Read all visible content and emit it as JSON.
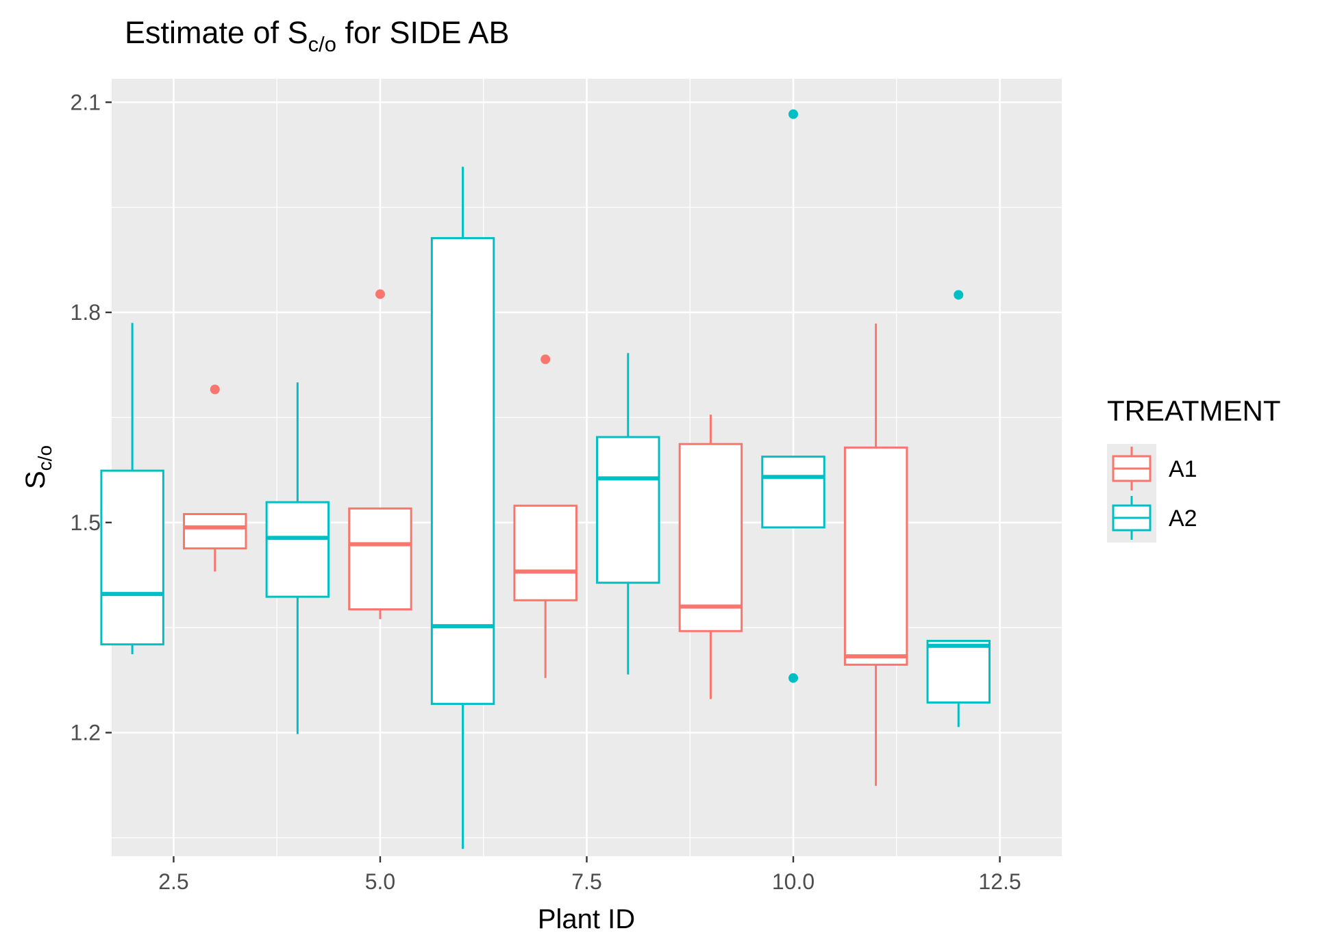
{
  "chart_data": {
    "type": "boxplot",
    "title": {
      "pre": "Estimate of S",
      "sub": "c/o",
      "post": " for SIDE AB"
    },
    "xlabel": "Plant ID",
    "ylabel": {
      "main": "S",
      "sub": "c/o"
    },
    "xlim": [
      1.75,
      13.25
    ],
    "ylim": [
      1.0235,
      2.1335
    ],
    "x_ticks": [
      2.5,
      5.0,
      7.5,
      10.0,
      12.5
    ],
    "x_tick_labels": [
      "2.5",
      "5.0",
      "7.5",
      "10.0",
      "12.5"
    ],
    "y_ticks": [
      1.2,
      1.5,
      1.8,
      2.1
    ],
    "y_tick_labels": [
      "1.2",
      "1.5",
      "1.8",
      "2.1"
    ],
    "grid": true,
    "legend": {
      "title": "TREATMENT",
      "position": "right",
      "entries": [
        {
          "label": "A1",
          "color": "#F8766D"
        },
        {
          "label": "A2",
          "color": "#00BFC4"
        }
      ]
    },
    "box_width": 0.75,
    "series": [
      {
        "name": "A2",
        "color": "#00BFC4",
        "boxes": [
          {
            "x": 2,
            "lower_whisker": 1.312,
            "q1": 1.326,
            "median": 1.398,
            "q3": 1.574,
            "upper_whisker": 1.785,
            "outliers": []
          },
          {
            "x": 4,
            "lower_whisker": 1.198,
            "q1": 1.394,
            "median": 1.478,
            "q3": 1.529,
            "upper_whisker": 1.7,
            "outliers": []
          },
          {
            "x": 6,
            "lower_whisker": 1.034,
            "q1": 1.241,
            "median": 1.352,
            "q3": 1.906,
            "upper_whisker": 2.008,
            "outliers": []
          },
          {
            "x": 8,
            "lower_whisker": 1.283,
            "q1": 1.414,
            "median": 1.563,
            "q3": 1.622,
            "upper_whisker": 1.742,
            "outliers": []
          },
          {
            "x": 10,
            "lower_whisker": 1.493,
            "q1": 1.493,
            "median": 1.565,
            "q3": 1.594,
            "upper_whisker": 1.594,
            "outliers": [
              2.083,
              1.278
            ]
          },
          {
            "x": 12,
            "lower_whisker": 1.208,
            "q1": 1.243,
            "median": 1.324,
            "q3": 1.331,
            "upper_whisker": 1.331,
            "outliers": [
              1.825
            ]
          }
        ]
      },
      {
        "name": "A1",
        "color": "#F8766D",
        "boxes": [
          {
            "x": 3,
            "lower_whisker": 1.43,
            "q1": 1.463,
            "median": 1.493,
            "q3": 1.512,
            "upper_whisker": 1.512,
            "outliers": [
              1.69
            ]
          },
          {
            "x": 5,
            "lower_whisker": 1.362,
            "q1": 1.376,
            "median": 1.469,
            "q3": 1.52,
            "upper_whisker": 1.52,
            "outliers": [
              1.826
            ]
          },
          {
            "x": 7,
            "lower_whisker": 1.278,
            "q1": 1.389,
            "median": 1.43,
            "q3": 1.524,
            "upper_whisker": 1.524,
            "outliers": [
              1.733
            ]
          },
          {
            "x": 9,
            "lower_whisker": 1.248,
            "q1": 1.345,
            "median": 1.38,
            "q3": 1.612,
            "upper_whisker": 1.654,
            "outliers": []
          },
          {
            "x": 11,
            "lower_whisker": 1.124,
            "q1": 1.297,
            "median": 1.309,
            "q3": 1.607,
            "upper_whisker": 1.784,
            "outliers": []
          }
        ]
      }
    ]
  }
}
